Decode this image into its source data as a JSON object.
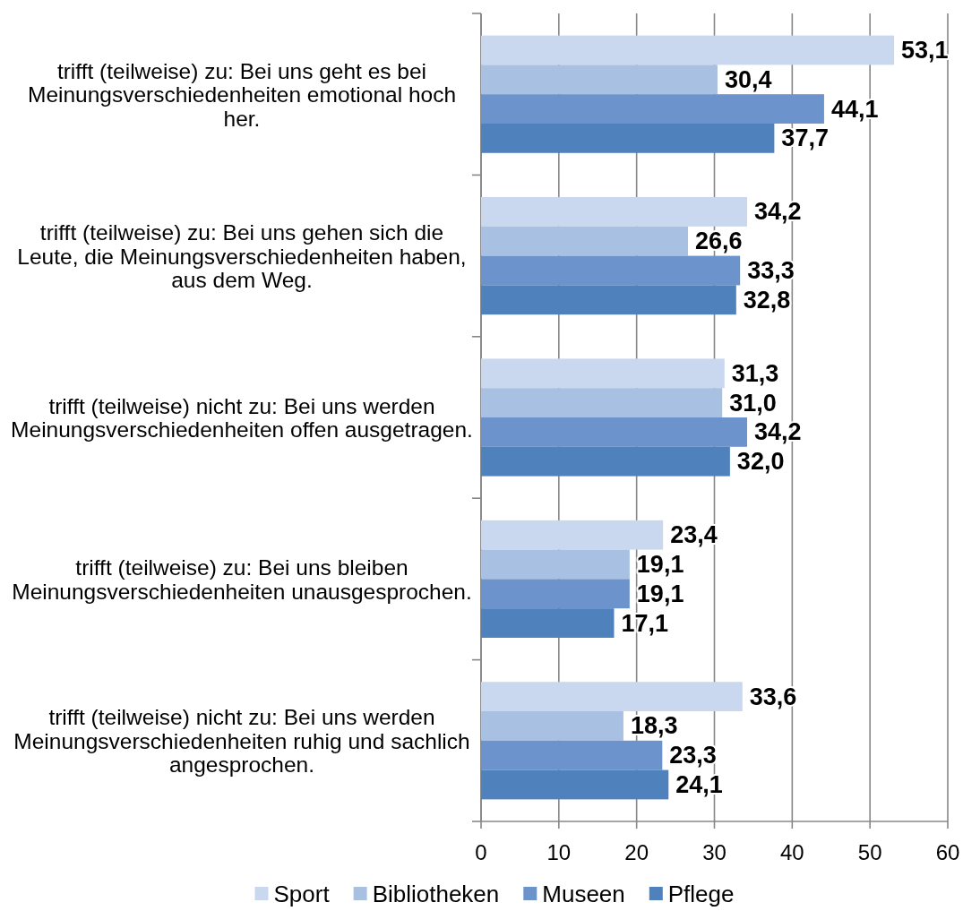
{
  "chart_data": {
    "type": "bar",
    "orientation": "horizontal",
    "categories": [
      "trifft (teilweise) zu: Bei uns geht es bei Meinungsverschiedenheiten emotional hoch her.",
      "trifft (teilweise) zu: Bei uns gehen sich die Leute, die Meinungsverschiedenheiten haben, aus dem Weg.",
      "trifft (teilweise) nicht zu: Bei uns werden Meinungsverschiedenheiten offen ausgetragen.",
      "trifft (teilweise) zu: Bei uns bleiben Meinungsverschiedenheiten unausgesprochen.",
      "trifft (teilweise) nicht zu: Bei uns werden Meinungsverschiedenheiten ruhig und sachlich angesprochen."
    ],
    "series": [
      {
        "name": "Sport",
        "color": "#c9d8ee",
        "values": [
          53.1,
          34.2,
          31.3,
          23.4,
          33.6
        ],
        "value_labels": [
          "53,1",
          "34,2",
          "31,3",
          "23,4",
          "33,6"
        ]
      },
      {
        "name": "Bibliotheken",
        "color": "#a8c0e2",
        "values": [
          30.4,
          26.6,
          31.0,
          19.1,
          18.3
        ],
        "value_labels": [
          "30,4",
          "26,6",
          "31,0",
          "19,1",
          "18,3"
        ]
      },
      {
        "name": "Museen",
        "color": "#6c93cc",
        "values": [
          44.1,
          33.3,
          34.2,
          19.1,
          23.3
        ],
        "value_labels": [
          "44,1",
          "33,3",
          "34,2",
          "19,1",
          "23,3"
        ]
      },
      {
        "name": "Pflege",
        "color": "#4f81bd",
        "values": [
          37.7,
          32.8,
          32.0,
          17.1,
          24.1
        ],
        "value_labels": [
          "37,7",
          "32,8",
          "32,0",
          "17,1",
          "24,1"
        ]
      }
    ],
    "xlim": [
      0,
      60
    ],
    "xticks": [
      0,
      10,
      20,
      30,
      40,
      50,
      60
    ],
    "grid": "x",
    "legend": "bottom"
  }
}
